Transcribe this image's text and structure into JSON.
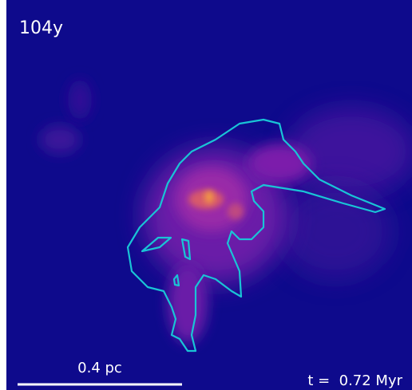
{
  "panel_label": "104y",
  "scale_bar": {
    "label": "0.4 pc"
  },
  "time_label": "t =  0.72 Myr"
}
